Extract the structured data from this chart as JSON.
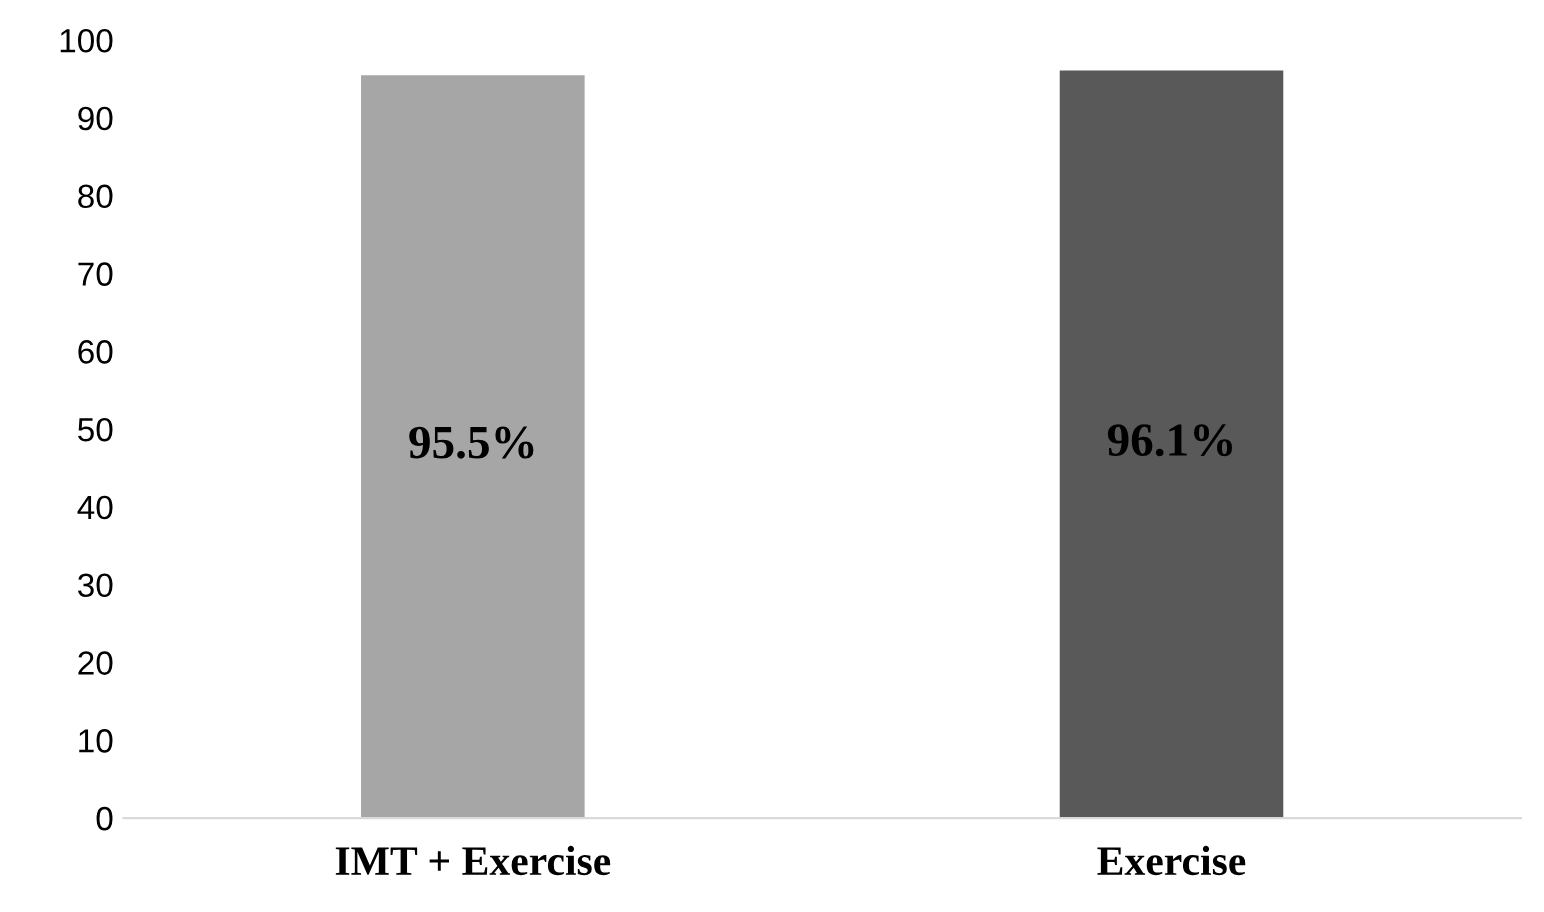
{
  "chart_data": {
    "type": "bar",
    "categories": [
      "IMT + Exercise",
      "Exercise"
    ],
    "values": [
      95.5,
      96.1
    ],
    "colors": [
      "#a6a6a6",
      "#595959"
    ],
    "value_labels": [
      "95.5%",
      "96.1%"
    ],
    "ylim": [
      0,
      100
    ],
    "yticks": [
      0,
      10,
      20,
      30,
      40,
      50,
      60,
      70,
      80,
      90,
      100
    ],
    "grid": false,
    "legend": false
  }
}
